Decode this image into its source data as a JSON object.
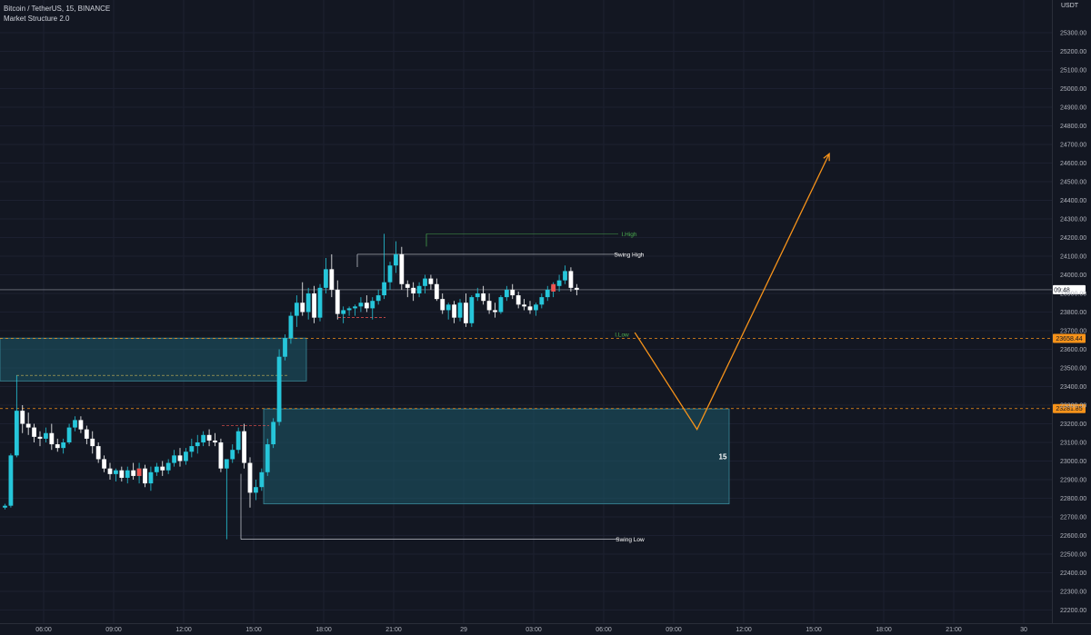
{
  "legend": {
    "symbol": "Bitcoin / TetherUS, 15, BINANCE",
    "indicator": "Market Structure 2.0"
  },
  "chart_data": {
    "type": "candlestick",
    "title": "Bitcoin / TetherUS, 15, BINANCE",
    "quote_unit": "USDT",
    "ylim": [
      22170,
      25470
    ],
    "x_ticks": [
      "06:00",
      "09:00",
      "12:00",
      "15:00",
      "18:00",
      "21:00",
      "29",
      "03:00",
      "06:00",
      "09:00",
      "12:00",
      "15:00",
      "18:00",
      "21:00",
      "30"
    ],
    "y_ticks": [
      "25300.00",
      "25200.00",
      "25100.00",
      "25000.00",
      "24900.00",
      "24800.00",
      "24700.00",
      "24600.00",
      "24500.00",
      "24400.00",
      "24300.00",
      "24200.00",
      "24100.00",
      "24000.00",
      "23900.00",
      "23800.00",
      "23700.00",
      "23600.00",
      "23500.00",
      "23400.00",
      "23300.00",
      "23200.00",
      "23100.00",
      "23000.00",
      "22900.00",
      "22800.00",
      "22700.00",
      "22600.00",
      "22500.00",
      "22400.00",
      "22300.00",
      "22200.00"
    ],
    "last_price": {
      "value": 23920,
      "label": "09:48"
    },
    "price_levels": [
      {
        "value": 23658.44,
        "label": "23658.44",
        "color": "#f7931a"
      },
      {
        "value": 23281.85,
        "label": "23281.85",
        "color": "#f7931a"
      }
    ],
    "structure_labels": [
      {
        "text": "I.High",
        "price": 24220,
        "color": "#4caf50"
      },
      {
        "text": "Swing High",
        "price": 24110,
        "color": "#ffffff"
      },
      {
        "text": "I.Low",
        "price": 23680,
        "color": "#4caf50"
      },
      {
        "text": "Swing Low",
        "price": 22580,
        "color": "#ffffff"
      }
    ],
    "zones": [
      {
        "top": 23660,
        "bottom": 23430,
        "color": "#1e5a6a"
      },
      {
        "top": 23280,
        "bottom": 22770,
        "color": "#1e5a6a",
        "label": "15"
      }
    ],
    "projection": [
      {
        "time": "07:20",
        "price": 23690
      },
      {
        "time": "10:00",
        "price": 23170
      },
      {
        "time": "15:40",
        "price": 24650
      }
    ],
    "candles": [
      {
        "o": 22750,
        "h": 22770,
        "l": 22740,
        "c": 22760
      },
      {
        "o": 22760,
        "h": 23040,
        "l": 22750,
        "c": 23030
      },
      {
        "o": 23030,
        "h": 23460,
        "l": 23020,
        "c": 23270
      },
      {
        "o": 23270,
        "h": 23300,
        "l": 23150,
        "c": 23200
      },
      {
        "o": 23200,
        "h": 23260,
        "l": 23140,
        "c": 23180
      },
      {
        "o": 23180,
        "h": 23200,
        "l": 23100,
        "c": 23130
      },
      {
        "o": 23130,
        "h": 23160,
        "l": 23080,
        "c": 23120
      },
      {
        "o": 23120,
        "h": 23180,
        "l": 23100,
        "c": 23150
      },
      {
        "o": 23150,
        "h": 23200,
        "l": 23060,
        "c": 23090
      },
      {
        "o": 23090,
        "h": 23120,
        "l": 23050,
        "c": 23070
      },
      {
        "o": 23070,
        "h": 23120,
        "l": 23040,
        "c": 23100
      },
      {
        "o": 23100,
        "h": 23200,
        "l": 23090,
        "c": 23180
      },
      {
        "o": 23180,
        "h": 23240,
        "l": 23160,
        "c": 23220
      },
      {
        "o": 23220,
        "h": 23240,
        "l": 23150,
        "c": 23170
      },
      {
        "o": 23170,
        "h": 23190,
        "l": 23090,
        "c": 23120
      },
      {
        "o": 23120,
        "h": 23160,
        "l": 23040,
        "c": 23080
      },
      {
        "o": 23080,
        "h": 23100,
        "l": 22990,
        "c": 23010
      },
      {
        "o": 23010,
        "h": 23030,
        "l": 22940,
        "c": 22960
      },
      {
        "o": 22960,
        "h": 22990,
        "l": 22900,
        "c": 22930
      },
      {
        "o": 22930,
        "h": 22960,
        "l": 22890,
        "c": 22950
      },
      {
        "o": 22950,
        "h": 22970,
        "l": 22890,
        "c": 22910
      },
      {
        "o": 22910,
        "h": 22970,
        "l": 22880,
        "c": 22950
      },
      {
        "o": 22950,
        "h": 22990,
        "l": 22900,
        "c": 22920
      },
      {
        "o": 22920,
        "h": 22990,
        "l": 22880,
        "c": 22960
      },
      {
        "o": 22960,
        "h": 22980,
        "l": 22860,
        "c": 22880
      },
      {
        "o": 22880,
        "h": 22970,
        "l": 22840,
        "c": 22940
      },
      {
        "o": 22940,
        "h": 22990,
        "l": 22920,
        "c": 22970
      },
      {
        "o": 22970,
        "h": 23000,
        "l": 22920,
        "c": 22950
      },
      {
        "o": 22950,
        "h": 23010,
        "l": 22930,
        "c": 22990
      },
      {
        "o": 22990,
        "h": 23060,
        "l": 22970,
        "c": 23030
      },
      {
        "o": 23030,
        "h": 23070,
        "l": 22970,
        "c": 23000
      },
      {
        "o": 23000,
        "h": 23070,
        "l": 22980,
        "c": 23050
      },
      {
        "o": 23050,
        "h": 23120,
        "l": 23020,
        "c": 23080
      },
      {
        "o": 23080,
        "h": 23140,
        "l": 23040,
        "c": 23100
      },
      {
        "o": 23100,
        "h": 23160,
        "l": 23080,
        "c": 23140
      },
      {
        "o": 23140,
        "h": 23170,
        "l": 23080,
        "c": 23110
      },
      {
        "o": 23110,
        "h": 23150,
        "l": 23080,
        "c": 23100
      },
      {
        "o": 23100,
        "h": 23120,
        "l": 22940,
        "c": 22960
      },
      {
        "o": 22960,
        "h": 22990,
        "l": 22580,
        "c": 23010
      },
      {
        "o": 23010,
        "h": 23090,
        "l": 22990,
        "c": 23060
      },
      {
        "o": 23060,
        "h": 23180,
        "l": 23040,
        "c": 23160
      },
      {
        "o": 23160,
        "h": 23200,
        "l": 22960,
        "c": 22990
      },
      {
        "o": 22990,
        "h": 23020,
        "l": 22750,
        "c": 22830
      },
      {
        "o": 22830,
        "h": 22900,
        "l": 22790,
        "c": 22860
      },
      {
        "o": 22860,
        "h": 22960,
        "l": 22840,
        "c": 22940
      },
      {
        "o": 22940,
        "h": 23120,
        "l": 22920,
        "c": 23090
      },
      {
        "o": 23090,
        "h": 23230,
        "l": 23070,
        "c": 23210
      },
      {
        "o": 23210,
        "h": 23600,
        "l": 23190,
        "c": 23560
      },
      {
        "o": 23560,
        "h": 23680,
        "l": 23540,
        "c": 23660
      },
      {
        "o": 23660,
        "h": 23800,
        "l": 23630,
        "c": 23780
      },
      {
        "o": 23780,
        "h": 23890,
        "l": 23720,
        "c": 23850
      },
      {
        "o": 23850,
        "h": 23960,
        "l": 23780,
        "c": 23800
      },
      {
        "o": 23800,
        "h": 23930,
        "l": 23760,
        "c": 23900
      },
      {
        "o": 23900,
        "h": 23940,
        "l": 23740,
        "c": 23770
      },
      {
        "o": 23770,
        "h": 23950,
        "l": 23750,
        "c": 23930
      },
      {
        "o": 23930,
        "h": 24090,
        "l": 23900,
        "c": 24030
      },
      {
        "o": 24030,
        "h": 24110,
        "l": 23880,
        "c": 23920
      },
      {
        "o": 23920,
        "h": 23970,
        "l": 23760,
        "c": 23790
      },
      {
        "o": 23790,
        "h": 23830,
        "l": 23740,
        "c": 23810
      },
      {
        "o": 23810,
        "h": 23830,
        "l": 23780,
        "c": 23820
      },
      {
        "o": 23820,
        "h": 23840,
        "l": 23780,
        "c": 23830
      },
      {
        "o": 23830,
        "h": 23880,
        "l": 23800,
        "c": 23850
      },
      {
        "o": 23850,
        "h": 23890,
        "l": 23800,
        "c": 23820
      },
      {
        "o": 23820,
        "h": 23880,
        "l": 23760,
        "c": 23860
      },
      {
        "o": 23860,
        "h": 23920,
        "l": 23840,
        "c": 23890
      },
      {
        "o": 23890,
        "h": 24220,
        "l": 23870,
        "c": 23960
      },
      {
        "o": 23960,
        "h": 24070,
        "l": 23920,
        "c": 24050
      },
      {
        "o": 24050,
        "h": 24180,
        "l": 24010,
        "c": 24110
      },
      {
        "o": 24110,
        "h": 24150,
        "l": 23920,
        "c": 23950
      },
      {
        "o": 23950,
        "h": 23970,
        "l": 23880,
        "c": 23930
      },
      {
        "o": 23930,
        "h": 23960,
        "l": 23860,
        "c": 23900
      },
      {
        "o": 23900,
        "h": 23960,
        "l": 23880,
        "c": 23940
      },
      {
        "o": 23940,
        "h": 24000,
        "l": 23900,
        "c": 23980
      },
      {
        "o": 23980,
        "h": 24000,
        "l": 23920,
        "c": 23950
      },
      {
        "o": 23950,
        "h": 23980,
        "l": 23860,
        "c": 23870
      },
      {
        "o": 23870,
        "h": 23900,
        "l": 23790,
        "c": 23810
      },
      {
        "o": 23810,
        "h": 23850,
        "l": 23760,
        "c": 23840
      },
      {
        "o": 23840,
        "h": 23860,
        "l": 23740,
        "c": 23770
      },
      {
        "o": 23770,
        "h": 23870,
        "l": 23750,
        "c": 23850
      },
      {
        "o": 23850,
        "h": 23900,
        "l": 23720,
        "c": 23740
      },
      {
        "o": 23740,
        "h": 23890,
        "l": 23720,
        "c": 23880
      },
      {
        "o": 23880,
        "h": 23930,
        "l": 23860,
        "c": 23900
      },
      {
        "o": 23900,
        "h": 23940,
        "l": 23840,
        "c": 23860
      },
      {
        "o": 23860,
        "h": 23900,
        "l": 23790,
        "c": 23810
      },
      {
        "o": 23810,
        "h": 23850,
        "l": 23770,
        "c": 23800
      },
      {
        "o": 23800,
        "h": 23890,
        "l": 23790,
        "c": 23880
      },
      {
        "o": 23880,
        "h": 23940,
        "l": 23860,
        "c": 23920
      },
      {
        "o": 23920,
        "h": 23950,
        "l": 23870,
        "c": 23890
      },
      {
        "o": 23890,
        "h": 23910,
        "l": 23820,
        "c": 23840
      },
      {
        "o": 23840,
        "h": 23870,
        "l": 23810,
        "c": 23830
      },
      {
        "o": 23830,
        "h": 23860,
        "l": 23790,
        "c": 23810
      },
      {
        "o": 23810,
        "h": 23850,
        "l": 23780,
        "c": 23840
      },
      {
        "o": 23840,
        "h": 23900,
        "l": 23820,
        "c": 23880
      },
      {
        "o": 23880,
        "h": 23940,
        "l": 23860,
        "c": 23920
      },
      {
        "o": 23920,
        "h": 23960,
        "l": 23880,
        "c": 23940
      },
      {
        "o": 23940,
        "h": 24000,
        "l": 23910,
        "c": 23970
      },
      {
        "o": 23970,
        "h": 24050,
        "l": 23950,
        "c": 24020
      },
      {
        "o": 24020,
        "h": 24040,
        "l": 23910,
        "c": 23930
      },
      {
        "o": 23930,
        "h": 23950,
        "l": 23890,
        "c": 23920
      }
    ]
  }
}
